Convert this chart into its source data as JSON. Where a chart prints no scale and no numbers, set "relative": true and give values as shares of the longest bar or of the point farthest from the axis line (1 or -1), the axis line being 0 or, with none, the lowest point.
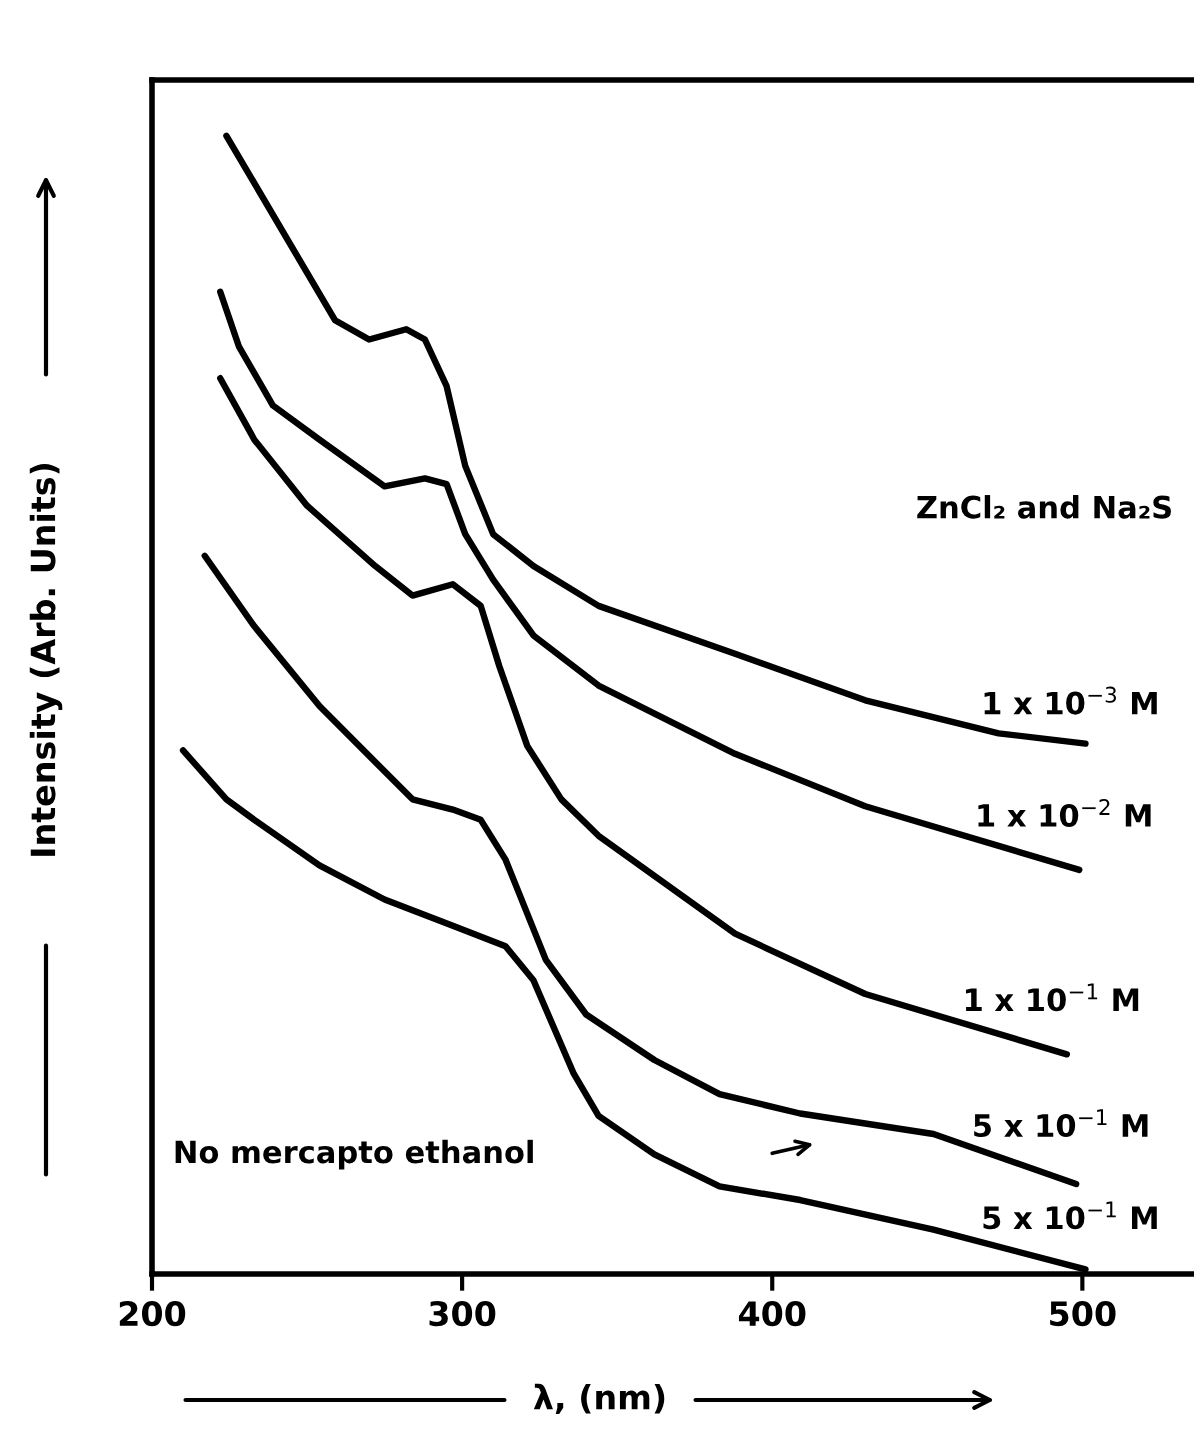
{
  "chart_data": {
    "type": "line",
    "relative": true,
    "xlabel": "λ, (nm)",
    "ylabel": "Intensity (Arb. Units)",
    "xlim": [
      200,
      536
    ],
    "xticks": [
      200,
      300,
      400,
      500
    ],
    "grid": false,
    "legend": false,
    "marker": "none",
    "line_style": "solid",
    "annotations": [
      "ZnCl₂ and Na₂S",
      "No mercapto ethanol"
    ],
    "series": [
      {
        "name": "1 x 10$^{−3}$ M",
        "color": "#000000",
        "x": [
          224,
          259,
          270,
          282,
          288,
          295,
          301,
          310,
          323,
          344,
          388,
          430,
          473,
          501
        ],
        "values": [
          1.0,
          0.838,
          0.821,
          0.83,
          0.821,
          0.78,
          0.71,
          0.65,
          0.622,
          0.587,
          0.545,
          0.504,
          0.475,
          0.466
        ]
      },
      {
        "name": "1 x 10$^{−2}$ M",
        "color": "#000000",
        "x": [
          222,
          228,
          239,
          254,
          275,
          288,
          295,
          301,
          310,
          323,
          344,
          388,
          430,
          499
        ],
        "values": [
          0.863,
          0.815,
          0.763,
          0.733,
          0.692,
          0.699,
          0.694,
          0.65,
          0.61,
          0.561,
          0.517,
          0.457,
          0.411,
          0.355
        ]
      },
      {
        "name": "1 x 10$^{−1}$ M",
        "color": "#000000",
        "x": [
          222,
          233,
          250,
          272,
          284,
          297,
          306,
          312,
          321,
          332,
          344,
          388,
          430,
          495
        ],
        "values": [
          0.787,
          0.733,
          0.675,
          0.622,
          0.596,
          0.606,
          0.587,
          0.534,
          0.464,
          0.417,
          0.385,
          0.299,
          0.246,
          0.193
        ]
      },
      {
        "name": "5 x 10$^{−1}$ M",
        "color": "#000000",
        "x": [
          217,
          233,
          254,
          284,
          297,
          306,
          314,
          327,
          340,
          362,
          383,
          409,
          452,
          498
        ],
        "values": [
          0.631,
          0.569,
          0.499,
          0.417,
          0.408,
          0.399,
          0.364,
          0.276,
          0.228,
          0.188,
          0.158,
          0.141,
          0.123,
          0.079
        ]
      },
      {
        "name": "5 x 10$^{−1}$ M",
        "color": "#000000",
        "x": [
          210,
          224,
          233,
          254,
          275,
          297,
          314,
          323,
          336,
          344,
          362,
          383,
          409,
          452,
          501
        ],
        "values": [
          0.46,
          0.417,
          0.399,
          0.359,
          0.329,
          0.306,
          0.288,
          0.258,
          0.176,
          0.139,
          0.105,
          0.077,
          0.065,
          0.039,
          0.004
        ]
      }
    ]
  }
}
